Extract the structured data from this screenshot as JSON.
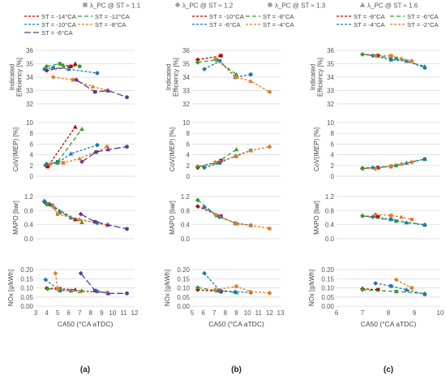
{
  "top_legend": [
    {
      "label": "λ_PC @ ST ≈ 1.1",
      "marker": "square"
    },
    {
      "label": "λ_PC @ ST ≈ 1.2",
      "marker": "diamond"
    },
    {
      "label": "λ_PC @ ST ≈ 1.3",
      "marker": "circle"
    },
    {
      "label": "λ_PC @ ST ≈ 1.6",
      "marker": "triangle"
    }
  ],
  "columns": [
    {
      "letter": "(a)",
      "xlabel": "CA50 (°CA aTDC)",
      "xlim": [
        3,
        12
      ],
      "xticks": [
        3,
        4,
        5,
        6,
        7,
        8,
        9,
        10,
        11,
        12
      ],
      "legend": [
        {
          "label": "ST = -14°CA",
          "color": "#c00000",
          "dash": "3,2"
        },
        {
          "label": "ST = -12°CA",
          "color": "#2ca02c",
          "dash": "5,3"
        },
        {
          "label": "ST = -10°CA",
          "color": "#1f77b4",
          "dash": "3,2"
        },
        {
          "label": "ST = -8°CA",
          "color": "#e37e24",
          "dash": "3,2"
        },
        {
          "label": "ST = -6°CA",
          "color": "#5b3a9e",
          "dash": "8,3"
        }
      ]
    },
    {
      "letter": "(b)",
      "xlabel": "CA50 (°CA aTDC)",
      "xlim": [
        5,
        13
      ],
      "xticks": [
        5,
        6,
        7,
        8,
        9,
        10,
        11,
        12,
        13
      ],
      "legend": [
        {
          "label": "ST = -10°CA",
          "color": "#c00000",
          "dash": "3,2"
        },
        {
          "label": "ST = -8°CA",
          "color": "#2ca02c",
          "dash": "5,3"
        },
        {
          "label": "ST = -6°CA",
          "color": "#1f77b4",
          "dash": "3,2"
        },
        {
          "label": "ST = -4°CA",
          "color": "#e37e24",
          "dash": "3,2"
        }
      ]
    },
    {
      "letter": "(c)",
      "xlabel": "CA50 (°CA aTDC)",
      "xlim": [
        6,
        10
      ],
      "xticks": [
        6,
        7,
        8,
        9,
        10
      ],
      "legend": [
        {
          "label": "ST = -8°CA",
          "color": "#c00000",
          "dash": "3,2"
        },
        {
          "label": "ST = -6°CA",
          "color": "#2ca02c",
          "dash": "5,3"
        },
        {
          "label": "ST = -4°CA",
          "color": "#1f77b4",
          "dash": "3,2"
        },
        {
          "label": "ST = -2°CA",
          "color": "#e37e24",
          "dash": "3,2"
        }
      ]
    }
  ],
  "rows": [
    {
      "ylabel": [
        "Indicated",
        "Efficiency [%]"
      ],
      "ylim": [
        32,
        36
      ],
      "yticks": [
        32,
        33,
        34,
        35,
        36
      ],
      "decimals": 0
    },
    {
      "ylabel": [
        "CoV(IMEP) [%]"
      ],
      "ylim": [
        0,
        10
      ],
      "yticks": [
        0,
        2,
        4,
        6,
        8,
        10
      ],
      "decimals": 0
    },
    {
      "ylabel": [
        "MAPO [bar]"
      ],
      "ylim": [
        0,
        1.2
      ],
      "yticks": [
        0,
        0.4,
        0.8,
        1.2
      ],
      "decimals": 1
    },
    {
      "ylabel": [
        "NOx [g/kWh]"
      ],
      "ylim": [
        0,
        0.2
      ],
      "yticks": [
        0,
        0.05,
        0.1,
        0.15,
        0.2
      ],
      "decimals": 2
    }
  ],
  "chart_data": [
    {
      "type": "line",
      "panel": "a-efficiency",
      "x_title": "CA50 (°CA aTDC)",
      "y_title": "Indicated Efficiency [%]",
      "series": [
        {
          "name": "ST = -14°CA",
          "x": [
            4.0,
            6.2,
            6.6
          ],
          "y": [
            34.5,
            34.8,
            35.0
          ]
        },
        {
          "name": "ST = -12°CA",
          "x": [
            4.0,
            5.2,
            5.5,
            7.0
          ],
          "y": [
            34.8,
            35.0,
            34.9,
            34.8
          ]
        },
        {
          "name": "ST = -10°CA",
          "x": [
            3.8,
            4.6,
            6.0,
            8.6
          ],
          "y": [
            34.6,
            34.7,
            34.6,
            34.3
          ]
        },
        {
          "name": "ST = -8°CA",
          "x": [
            4.6,
            6.4,
            8.2,
            9.5
          ],
          "y": [
            34.0,
            33.8,
            33.3,
            33.0
          ]
        },
        {
          "name": "ST = -6°CA",
          "x": [
            6.7,
            8.4,
            9.6,
            11.3
          ],
          "y": [
            33.8,
            32.9,
            33.0,
            32.5
          ]
        }
      ]
    },
    {
      "type": "line",
      "panel": "a-cov",
      "x_title": "CA50 (°CA aTDC)",
      "y_title": "CoV(IMEP) [%]",
      "series": [
        {
          "name": "ST = -14°CA",
          "x": [
            3.9,
            4.1,
            6.6
          ],
          "y": [
            2.0,
            1.8,
            9.2
          ]
        },
        {
          "name": "ST = -12°CA",
          "x": [
            3.9,
            5.0,
            7.2
          ],
          "y": [
            2.1,
            2.7,
            8.8
          ]
        },
        {
          "name": "ST = -10°CA",
          "x": [
            4.0,
            5.0,
            6.2,
            8.6
          ],
          "y": [
            2.3,
            2.5,
            4.2,
            5.8
          ]
        },
        {
          "name": "ST = -8°CA",
          "x": [
            4.3,
            5.5,
            7.0,
            9.5
          ],
          "y": [
            2.2,
            2.5,
            3.3,
            5.5
          ]
        },
        {
          "name": "ST = -6°CA",
          "x": [
            7.2,
            8.5,
            9.6,
            11.3
          ],
          "y": [
            2.7,
            4.5,
            5.0,
            5.5
          ]
        }
      ]
    },
    {
      "type": "line",
      "panel": "a-mapo",
      "x_title": "CA50 (°CA aTDC)",
      "y_title": "MAPO [bar]",
      "series": [
        {
          "name": "ST = -14°CA",
          "x": [
            3.8,
            4.2,
            6.6
          ],
          "y": [
            1.05,
            0.98,
            0.55
          ]
        },
        {
          "name": "ST = -12°CA",
          "x": [
            4.0,
            5.2,
            7.2
          ],
          "y": [
            0.98,
            0.75,
            0.47
          ]
        },
        {
          "name": "ST = -10°CA",
          "x": [
            3.8,
            4.5,
            6.2,
            8.6
          ],
          "y": [
            1.07,
            0.95,
            0.6,
            0.45
          ]
        },
        {
          "name": "ST = -8°CA",
          "x": [
            4.6,
            5.0,
            7.0,
            9.5
          ],
          "y": [
            0.92,
            0.7,
            0.55,
            0.38
          ]
        },
        {
          "name": "ST = -6°CA",
          "x": [
            7.1,
            8.4,
            9.6,
            11.3
          ],
          "y": [
            0.7,
            0.48,
            0.4,
            0.28
          ]
        }
      ]
    },
    {
      "type": "line",
      "panel": "a-nox",
      "x_title": "CA50 (°CA aTDC)",
      "y_title": "NOx [g/kWh]",
      "series": [
        {
          "name": "ST = -14°CA",
          "x": [
            4.0,
            5.2,
            6.6
          ],
          "y": [
            0.098,
            0.095,
            0.09
          ]
        },
        {
          "name": "ST = -12°CA",
          "x": [
            4.1,
            5.2,
            7.2
          ],
          "y": [
            0.095,
            0.09,
            0.085
          ]
        },
        {
          "name": "ST = -10°CA",
          "x": [
            3.9,
            5.2,
            6.2,
            8.6
          ],
          "y": [
            0.145,
            0.085,
            0.085,
            0.08
          ]
        },
        {
          "name": "ST = -8°CA",
          "x": [
            4.8,
            5.0,
            7.0,
            9.5
          ],
          "y": [
            0.18,
            0.095,
            0.08,
            0.075
          ]
        },
        {
          "name": "ST = -6°CA",
          "x": [
            7.1,
            8.4,
            9.6,
            11.3
          ],
          "y": [
            0.18,
            0.085,
            0.07,
            0.07
          ]
        }
      ]
    },
    {
      "type": "line",
      "panel": "b-efficiency",
      "x_title": "CA50 (°CA aTDC)",
      "y_title": "Indicated Efficiency [%]",
      "series": [
        {
          "name": "ST = -10°CA",
          "x": [
            5.5,
            7.6
          ],
          "y": [
            35.3,
            35.6
          ]
        },
        {
          "name": "ST = -8°CA",
          "x": [
            5.5,
            7.2,
            9.0
          ],
          "y": [
            35.1,
            35.3,
            34.2
          ]
        },
        {
          "name": "ST = -6°CA",
          "x": [
            6.1,
            7.5,
            8.9,
            10.3
          ],
          "y": [
            34.6,
            35.2,
            34.0,
            34.2
          ]
        },
        {
          "name": "ST = -4°CA",
          "x": [
            7.1,
            9.0,
            10.3,
            12.0
          ],
          "y": [
            35.4,
            34.0,
            33.7,
            32.9
          ]
        }
      ]
    },
    {
      "type": "line",
      "panel": "b-cov",
      "x_title": "CA50 (°CA aTDC)",
      "y_title": "CoV(IMEP) [%]",
      "series": [
        {
          "name": "ST = -10°CA",
          "x": [
            5.5,
            7.6
          ],
          "y": [
            1.6,
            2.9
          ]
        },
        {
          "name": "ST = -8°CA",
          "x": [
            5.5,
            7.2,
            9.0
          ],
          "y": [
            1.8,
            2.5,
            5.0
          ]
        },
        {
          "name": "ST = -6°CA",
          "x": [
            6.1,
            7.5,
            8.9,
            10.3
          ],
          "y": [
            1.6,
            2.5,
            3.8,
            4.8
          ]
        },
        {
          "name": "ST = -4°CA",
          "x": [
            7.1,
            9.0,
            10.3,
            12.0
          ],
          "y": [
            2.6,
            3.7,
            4.8,
            5.5
          ]
        }
      ]
    },
    {
      "type": "line",
      "panel": "b-mapo",
      "x_title": "CA50 (°CA aTDC)",
      "y_title": "MAPO [bar]",
      "series": [
        {
          "name": "ST = -10°CA",
          "x": [
            5.5,
            7.6
          ],
          "y": [
            0.92,
            0.64
          ]
        },
        {
          "name": "ST = -8°CA",
          "x": [
            5.5,
            7.2,
            9.0
          ],
          "y": [
            1.1,
            0.66,
            0.43
          ]
        },
        {
          "name": "ST = -6°CA",
          "x": [
            6.1,
            7.5,
            8.9,
            10.3
          ],
          "y": [
            0.9,
            0.62,
            0.45,
            0.38
          ]
        },
        {
          "name": "ST = -4°CA",
          "x": [
            7.1,
            9.0,
            10.3,
            12.0
          ],
          "y": [
            0.68,
            0.43,
            0.38,
            0.29
          ]
        }
      ]
    },
    {
      "type": "line",
      "panel": "b-nox",
      "x_title": "CA50 (°CA aTDC)",
      "y_title": "NOx [g/kWh]",
      "series": [
        {
          "name": "ST = -10°CA",
          "x": [
            5.5,
            7.6
          ],
          "y": [
            0.09,
            0.08
          ]
        },
        {
          "name": "ST = -8°CA",
          "x": [
            5.5,
            7.2,
            9.0
          ],
          "y": [
            0.102,
            0.085,
            0.075
          ]
        },
        {
          "name": "ST = -6°CA",
          "x": [
            6.1,
            7.5,
            8.9,
            10.3
          ],
          "y": [
            0.18,
            0.085,
            0.08,
            0.075
          ]
        },
        {
          "name": "ST = -4°CA",
          "x": [
            7.1,
            9.0,
            10.3,
            12.0
          ],
          "y": [
            0.09,
            0.108,
            0.08,
            0.072
          ]
        }
      ]
    },
    {
      "type": "line",
      "panel": "c-efficiency",
      "x_title": "CA50 (°CA aTDC)",
      "y_title": "Indicated Efficiency [%]",
      "series": [
        {
          "name": "ST = -8°CA",
          "x": [
            7.0,
            7.6
          ],
          "y": [
            35.7,
            35.6
          ]
        },
        {
          "name": "ST = -6°CA",
          "x": [
            7.0,
            8.3,
            9.4
          ],
          "y": [
            35.7,
            35.4,
            34.8
          ]
        },
        {
          "name": "ST = -4°CA",
          "x": [
            7.4,
            8.1,
            8.7,
            9.4
          ],
          "y": [
            35.6,
            35.3,
            35.2,
            34.7
          ]
        },
        {
          "name": "ST = -2°CA",
          "x": [
            7.5,
            8.1,
            8.5,
            8.9
          ],
          "y": [
            35.6,
            35.6,
            35.4,
            35.2
          ]
        }
      ]
    },
    {
      "type": "line",
      "panel": "c-cov",
      "x_title": "CA50 (°CA aTDC)",
      "y_title": "CoV(IMEP) [%]",
      "series": [
        {
          "name": "ST = -8°CA",
          "x": [
            7.0,
            7.6
          ],
          "y": [
            1.5,
            1.6
          ]
        },
        {
          "name": "ST = -6°CA",
          "x": [
            7.0,
            8.3,
            9.4
          ],
          "y": [
            1.4,
            2.0,
            3.2
          ]
        },
        {
          "name": "ST = -4°CA",
          "x": [
            7.4,
            8.1,
            8.7,
            9.4
          ],
          "y": [
            1.6,
            1.8,
            2.5,
            3.2
          ]
        },
        {
          "name": "ST = -2°CA",
          "x": [
            7.5,
            8.1,
            8.5,
            8.9
          ],
          "y": [
            1.4,
            1.9,
            2.3,
            2.6
          ]
        }
      ]
    },
    {
      "type": "line",
      "panel": "c-mapo",
      "x_title": "CA50 (°CA aTDC)",
      "y_title": "MAPO [bar]",
      "series": [
        {
          "name": "ST = -8°CA",
          "x": [
            7.0,
            7.6
          ],
          "y": [
            0.65,
            0.62
          ]
        },
        {
          "name": "ST = -6°CA",
          "x": [
            7.0,
            8.3,
            9.4
          ],
          "y": [
            0.65,
            0.5,
            0.4
          ]
        },
        {
          "name": "ST = -4°CA",
          "x": [
            7.4,
            8.1,
            8.7,
            9.4
          ],
          "y": [
            0.62,
            0.55,
            0.46,
            0.39
          ]
        },
        {
          "name": "ST = -2°CA",
          "x": [
            7.5,
            8.1,
            8.5,
            8.9
          ],
          "y": [
            0.69,
            0.66,
            0.62,
            0.55
          ]
        }
      ]
    },
    {
      "type": "line",
      "panel": "c-nox",
      "x_title": "CA50 (°CA aTDC)",
      "y_title": "NOx [g/kWh]",
      "series": [
        {
          "name": "ST = -8°CA",
          "x": [
            7.0,
            7.6
          ],
          "y": [
            0.095,
            0.09
          ]
        },
        {
          "name": "ST = -6°CA",
          "x": [
            7.0,
            8.3,
            9.4
          ],
          "y": [
            0.09,
            0.08,
            0.07
          ]
        },
        {
          "name": "ST = -4°CA",
          "x": [
            7.5,
            8.1,
            8.7,
            9.4
          ],
          "y": [
            0.125,
            0.11,
            0.09,
            0.065
          ]
        },
        {
          "name": "ST = -2°CA",
          "x": [
            8.3,
            8.9
          ],
          "y": [
            0.145,
            0.1
          ]
        }
      ]
    }
  ]
}
